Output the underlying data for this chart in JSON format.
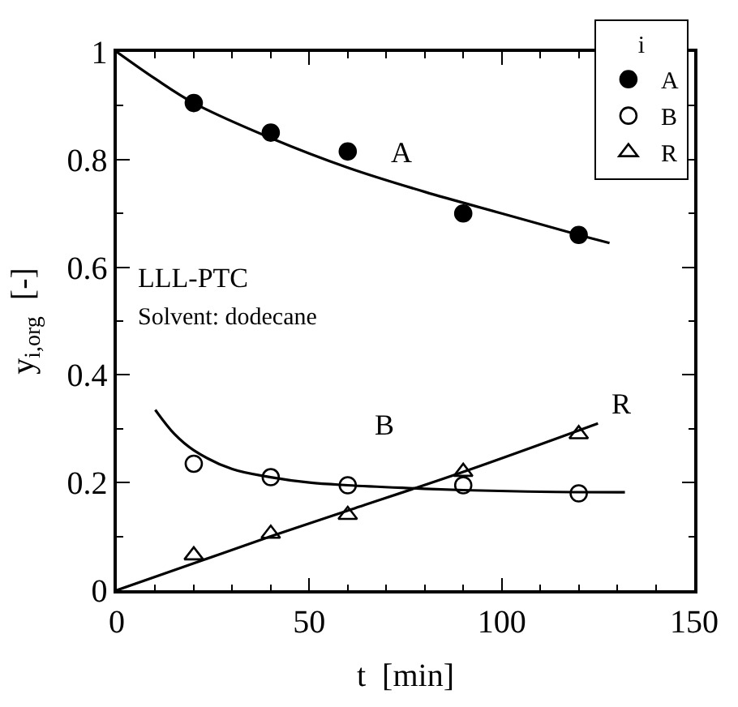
{
  "chart_data": {
    "type": "scatter",
    "xlabel": "t  [min]",
    "ylabel": "y$_{i,org}$  [-]",
    "legend_title": "i",
    "xlim": [
      0,
      150
    ],
    "xticks": [
      0,
      50,
      100,
      150
    ],
    "ylim": [
      0,
      1
    ],
    "yticks": [
      0,
      0.2,
      0.4,
      0.6,
      0.8,
      1
    ],
    "legend": "top right",
    "series": [
      {
        "name": "A",
        "marker": "circle",
        "color": "#000000",
        "x": [
          20,
          40,
          60,
          90,
          120
        ],
        "values": [
          0.905,
          0.85,
          0.815,
          0.7,
          0.66
        ]
      },
      {
        "name": "B",
        "marker": "circle",
        "color": "#ffffff",
        "x": [
          20,
          40,
          60,
          90,
          120
        ],
        "values": [
          0.235,
          0.21,
          0.195,
          0.195,
          0.18
        ]
      },
      {
        "name": "R",
        "marker": "triangle",
        "color": "#ffffff",
        "x": [
          20,
          40,
          60,
          90,
          120
        ],
        "values": [
          0.065,
          0.105,
          0.14,
          0.22,
          0.29
        ]
      },
      {
        "type": "line",
        "color": "#000000",
        "line_style": "solid",
        "x": [
          0,
          10,
          20,
          40,
          60,
          80,
          100,
          120,
          128
        ],
        "values": [
          1,
          0.95,
          0.905,
          0.84,
          0.785,
          0.74,
          0.7,
          0.66,
          0.645
        ]
      },
      {
        "type": "line",
        "color": "#000000",
        "line_style": "solid",
        "x": [
          10,
          15,
          20,
          30,
          40,
          50,
          60,
          75,
          90,
          110,
          132
        ],
        "values": [
          0.335,
          0.29,
          0.26,
          0.225,
          0.21,
          0.2,
          0.195,
          0.19,
          0.186,
          0.183,
          0.182
        ]
      },
      {
        "type": "line",
        "color": "#000000",
        "line_style": "solid",
        "x": [
          0,
          20,
          40,
          60,
          90,
          125
        ],
        "values": [
          0,
          0.05,
          0.1,
          0.148,
          0.22,
          0.31
        ]
      }
    ],
    "annotations": [
      "A",
      "B",
      "R",
      "LLL-PTC",
      "Solvent: dodecane"
    ]
  }
}
